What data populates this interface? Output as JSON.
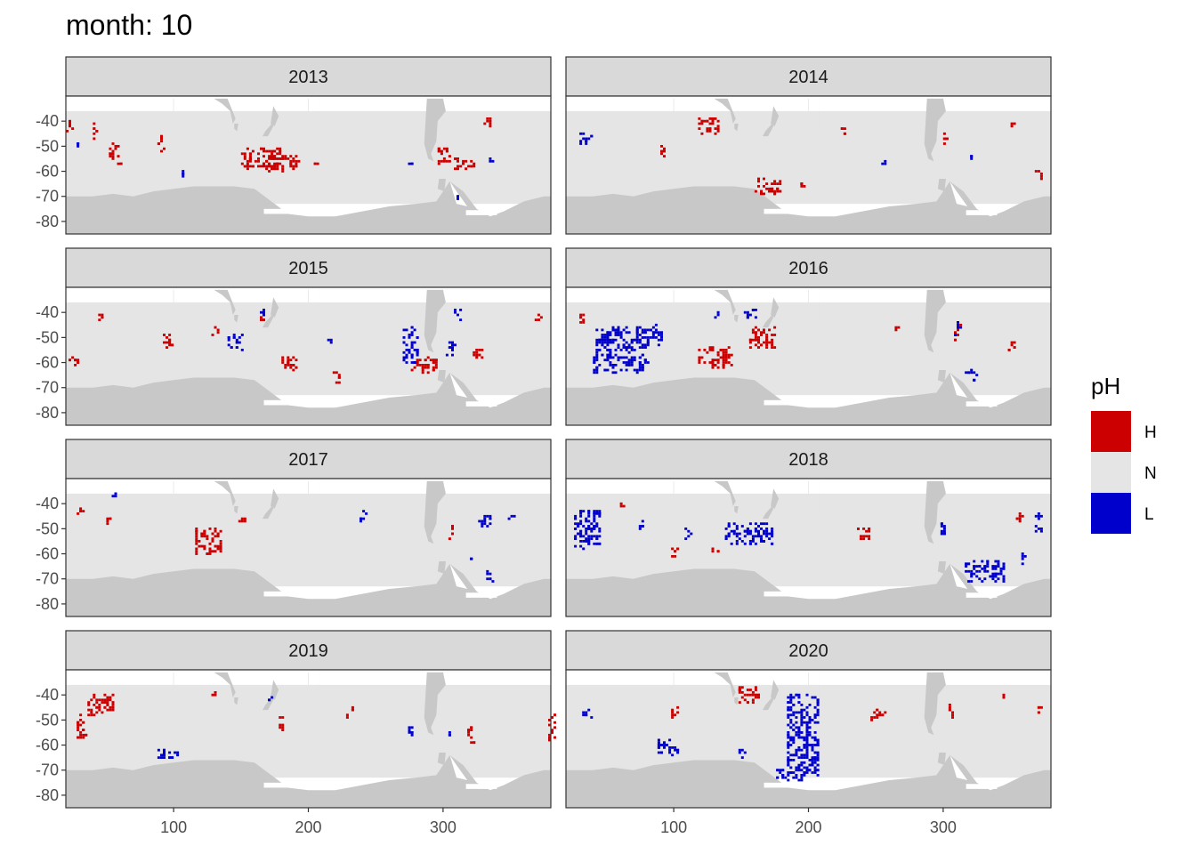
{
  "title": "month: 10",
  "chart_data": {
    "type": "heatmap",
    "title": "month: 10",
    "facet_variable": "year",
    "panels": [
      {
        "year": "2013",
        "high_clusters": [
          [
            22,
            -42,
            3,
            2
          ],
          [
            40,
            -44,
            2,
            3
          ],
          [
            55,
            -52,
            4,
            3
          ],
          [
            90,
            -49,
            2,
            3
          ],
          [
            165,
            -55,
            15,
            4
          ],
          [
            180,
            -57,
            12,
            3
          ],
          [
            300,
            -54,
            5,
            3
          ],
          [
            315,
            -57,
            8,
            2
          ],
          [
            333,
            -40,
            3,
            2
          ],
          [
            60,
            -57,
            2,
            1
          ],
          [
            205,
            -57,
            2,
            1
          ]
        ],
        "low_clusters": [
          [
            28,
            -50,
            1,
            1
          ],
          [
            105,
            -61,
            3,
            1
          ],
          [
            275,
            -57,
            1,
            1
          ],
          [
            335,
            -56,
            2,
            1
          ],
          [
            310,
            -71,
            1,
            1
          ]
        ]
      },
      {
        "year": "2014",
        "high_clusters": [
          [
            125,
            -42,
            8,
            3
          ],
          [
            170,
            -66,
            10,
            3
          ],
          [
            195,
            -66,
            2,
            2
          ],
          [
            300,
            -47,
            2,
            3
          ],
          [
            370,
            -62,
            2,
            2
          ],
          [
            90,
            -52,
            2,
            3
          ],
          [
            225,
            -44,
            2,
            2
          ],
          [
            350,
            -41,
            2,
            1
          ]
        ],
        "low_clusters": [
          [
            35,
            -47,
            5,
            2
          ],
          [
            255,
            -56,
            2,
            1
          ],
          [
            320,
            -54,
            1,
            1
          ]
        ]
      },
      {
        "year": "2015",
        "high_clusters": [
          [
            25,
            -59,
            4,
            2
          ],
          [
            45,
            -42,
            2,
            2
          ],
          [
            95,
            -51,
            3,
            4
          ],
          [
            130,
            -48,
            2,
            2
          ],
          [
            185,
            -60,
            6,
            3
          ],
          [
            220,
            -66,
            3,
            2
          ],
          [
            285,
            -61,
            10,
            3
          ],
          [
            325,
            -55,
            3,
            3
          ],
          [
            370,
            -42,
            2,
            2
          ],
          [
            165,
            -42,
            2,
            2
          ]
        ],
        "low_clusters": [
          [
            145,
            -52,
            5,
            3
          ],
          [
            275,
            -53,
            6,
            7
          ],
          [
            305,
            -55,
            3,
            3
          ],
          [
            165,
            -40,
            2,
            2
          ],
          [
            310,
            -41,
            2,
            2
          ],
          [
            215,
            -51,
            1,
            1
          ]
        ]
      },
      {
        "year": "2016",
        "high_clusters": [
          [
            30,
            -43,
            2,
            3
          ],
          [
            130,
            -58,
            12,
            4
          ],
          [
            165,
            -50,
            10,
            4
          ],
          [
            310,
            -48,
            2,
            3
          ],
          [
            350,
            -53,
            3,
            2
          ],
          [
            265,
            -46,
            2,
            1
          ]
        ],
        "low_clusters": [
          [
            60,
            -55,
            20,
            9
          ],
          [
            85,
            -49,
            5,
            4
          ],
          [
            155,
            -40,
            5,
            2
          ],
          [
            130,
            -41,
            2,
            1
          ],
          [
            320,
            -65,
            4,
            2
          ],
          [
            310,
            -47,
            2,
            3
          ]
        ]
      },
      {
        "year": "2017",
        "high_clusters": [
          [
            30,
            -42,
            2,
            2
          ],
          [
            50,
            -46,
            2,
            2
          ],
          [
            125,
            -55,
            10,
            5
          ],
          [
            150,
            -46,
            2,
            2
          ],
          [
            305,
            -51,
            2,
            3
          ]
        ],
        "low_clusters": [
          [
            55,
            -37,
            2,
            1
          ],
          [
            240,
            -45,
            3,
            2
          ],
          [
            330,
            -47,
            4,
            3
          ],
          [
            350,
            -46,
            2,
            1
          ],
          [
            335,
            -69,
            3,
            2
          ],
          [
            320,
            -61,
            1,
            1
          ]
        ]
      },
      {
        "year": "2018",
        "high_clusters": [
          [
            100,
            -60,
            3,
            2
          ],
          [
            130,
            -59,
            3,
            1
          ],
          [
            240,
            -52,
            4,
            3
          ],
          [
            355,
            -45,
            3,
            2
          ],
          [
            60,
            -41,
            2,
            1
          ]
        ],
        "low_clusters": [
          [
            35,
            -50,
            10,
            8
          ],
          [
            75,
            -49,
            3,
            2
          ],
          [
            155,
            -52,
            18,
            4
          ],
          [
            110,
            -52,
            2,
            2
          ],
          [
            300,
            -50,
            3,
            3
          ],
          [
            330,
            -67,
            15,
            4
          ],
          [
            360,
            -62,
            2,
            2
          ],
          [
            370,
            -47,
            2,
            4
          ]
        ],
        "white_zero_cells": []
      },
      {
        "year": "2019",
        "high_clusters": [
          [
            45,
            -44,
            10,
            4
          ],
          [
            30,
            -53,
            4,
            5
          ],
          [
            380,
            -53,
            3,
            5
          ],
          [
            320,
            -56,
            3,
            3
          ],
          [
            180,
            -51,
            2,
            3
          ],
          [
            230,
            -47,
            2,
            2
          ],
          [
            130,
            -40,
            2,
            1
          ]
        ],
        "low_clusters": [
          [
            95,
            -64,
            8,
            2
          ],
          [
            170,
            -42,
            2,
            1
          ],
          [
            275,
            -55,
            2,
            3
          ],
          [
            305,
            -56,
            1,
            1
          ]
        ]
      },
      {
        "year": "2020",
        "high_clusters": [
          [
            155,
            -40,
            8,
            3
          ],
          [
            250,
            -48,
            6,
            2
          ],
          [
            100,
            -47,
            3,
            2
          ],
          [
            305,
            -47,
            2,
            3
          ],
          [
            345,
            -41,
            2,
            1
          ],
          [
            370,
            -46,
            2,
            2
          ]
        ],
        "low_clusters": [
          [
            195,
            -56,
            12,
            16
          ],
          [
            185,
            -72,
            10,
            2
          ],
          [
            95,
            -61,
            8,
            3
          ],
          [
            35,
            -47,
            3,
            2
          ],
          [
            150,
            -64,
            2,
            2
          ]
        ]
      }
    ],
    "categories": [
      "H",
      "N",
      "L"
    ],
    "colors": {
      "H": "#cc0000",
      "N": "#e5e5e5",
      "L": "#0000cc",
      "land": "#c8c8c8",
      "na": "#ffffff",
      "strip_bg": "#d9d9d9"
    },
    "legend": {
      "title": "pH",
      "position": "right"
    },
    "xlim": [
      20,
      380
    ],
    "ylim": [
      -85,
      -30
    ],
    "x_ticks": [
      100,
      200,
      300
    ],
    "y_ticks": [
      -40,
      -50,
      -60,
      -70,
      -80
    ],
    "xlabel": "",
    "ylabel": ""
  }
}
